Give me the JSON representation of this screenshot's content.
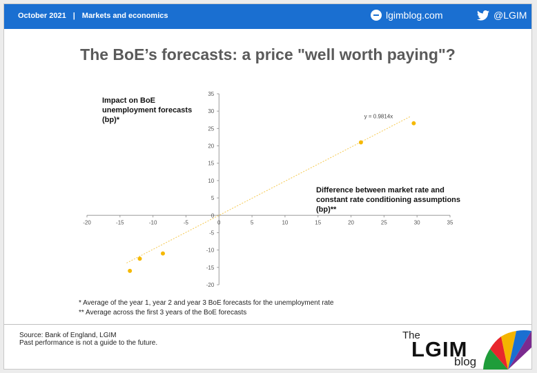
{
  "header": {
    "date": "October 2021",
    "separator": "|",
    "section": "Markets and economics",
    "site": "lgimblog.com",
    "twitter": "@LGIM",
    "bar_color": "#1a6fd1"
  },
  "title": "The BoE’s forecasts: a price \"well worth paying\"?",
  "chart_data": {
    "type": "scatter",
    "ylabel_lines": [
      "Impact on BoE",
      "unemployment forecasts",
      "(bp)*"
    ],
    "xlabel_lines": [
      "Difference between market rate and",
      "constant rate conditioning assumptions",
      "(bp)**"
    ],
    "xlim": [
      -20,
      35
    ],
    "ylim": [
      -20,
      35
    ],
    "x_ticks": [
      -20,
      -15,
      -10,
      -5,
      0,
      5,
      10,
      15,
      20,
      25,
      30,
      35
    ],
    "y_ticks": [
      -20,
      -15,
      -10,
      -5,
      0,
      5,
      10,
      15,
      20,
      25,
      30,
      35
    ],
    "points": [
      {
        "x": -13.5,
        "y": -16
      },
      {
        "x": -12,
        "y": -12.5
      },
      {
        "x": -8.5,
        "y": -11
      },
      {
        "x": 21.5,
        "y": 21
      },
      {
        "x": 29.5,
        "y": 26.5
      }
    ],
    "trendline": {
      "label": "y = 0.9814x",
      "slope": 0.9814,
      "x_range": [
        -14,
        29
      ]
    },
    "point_color": "#f5b800",
    "trend_color": "#f5c84c"
  },
  "notes": [
    {
      "marker": "*",
      "text": "Average of the year 1, year 2 and year 3 BoE forecasts for the unemployment rate"
    },
    {
      "marker": "**",
      "text": "Average across the first 3 years of the BoE forecasts"
    }
  ],
  "footer": {
    "source": "Source: Bank of England, LGIM",
    "disclaimer": "Past performance is not a guide to the future."
  },
  "brand": {
    "the": "The",
    "name": "LGIM",
    "blog": "blog"
  }
}
